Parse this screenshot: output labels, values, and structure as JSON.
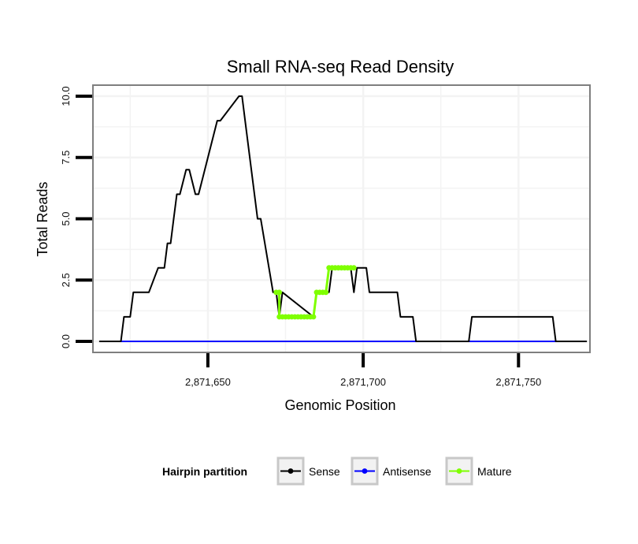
{
  "chart_data": {
    "type": "line",
    "title": "Small RNA-seq Read Density",
    "xlabel": "Genomic Position",
    "ylabel": "Total Reads",
    "xlim": [
      2871613,
      2871773
    ],
    "ylim": [
      -0.45,
      10.45
    ],
    "x_ticks": [
      {
        "value": 2871650,
        "label": "2,871,650"
      },
      {
        "value": 2871700,
        "label": "2,871,700"
      },
      {
        "value": 2871750,
        "label": "2,871,750"
      }
    ],
    "y_ticks": [
      {
        "value": 0,
        "label": "0.0"
      },
      {
        "value": 2.5,
        "label": "2.5"
      },
      {
        "value": 5,
        "label": "5.0"
      },
      {
        "value": 7.5,
        "label": "7.5"
      },
      {
        "value": 10,
        "label": "10.0"
      }
    ],
    "grid": true,
    "legend": {
      "title": "Hairpin partition",
      "position": "bottom",
      "entries": [
        {
          "name": "Sense",
          "color": "#000000"
        },
        {
          "name": "Antisense",
          "color": "#0000ff"
        },
        {
          "name": "Mature",
          "color": "#7fff00"
        }
      ]
    },
    "series": [
      {
        "name": "Sense",
        "color": "#000000",
        "x": [
          2871615,
          2871622,
          2871623,
          2871624,
          2871625,
          2871626,
          2871630,
          2871631,
          2871634,
          2871635,
          2871636,
          2871637,
          2871638,
          2871639,
          2871640,
          2871641,
          2871643,
          2871644,
          2871646,
          2871647,
          2871653,
          2871654,
          2871660,
          2871661,
          2871662,
          2871666,
          2871667,
          2871671,
          2871672,
          2871673,
          2871674,
          2871684,
          2871685,
          2871689,
          2871690,
          2871696,
          2871697,
          2871698,
          2871701,
          2871702,
          2871711,
          2871712,
          2871716,
          2871717,
          2871734,
          2871735,
          2871761,
          2871762,
          2871772
        ],
        "y": [
          0,
          0,
          1,
          1,
          1,
          2,
          2,
          2,
          3,
          3,
          3,
          4,
          4,
          5,
          6,
          6,
          7,
          7,
          6,
          6,
          9,
          9,
          10,
          10,
          9,
          5,
          5,
          2,
          2,
          1,
          2,
          1,
          2,
          2,
          3,
          3,
          2,
          3,
          3,
          2,
          2,
          1,
          1,
          0,
          0,
          1,
          1,
          0,
          0
        ]
      },
      {
        "name": "Antisense",
        "color": "#0000ff",
        "x": [
          2871622,
          2871762
        ],
        "y": [
          0,
          0
        ]
      },
      {
        "name": "Mature",
        "color": "#7fff00",
        "x": [
          2871672,
          2871673,
          2871673,
          2871674,
          2871675,
          2871676,
          2871677,
          2871678,
          2871679,
          2871680,
          2871681,
          2871682,
          2871683,
          2871684,
          2871685,
          2871686,
          2871687,
          2871688,
          2871689,
          2871690,
          2871691,
          2871692,
          2871693,
          2871694,
          2871695,
          2871696,
          2871697
        ],
        "y": [
          2,
          2,
          1,
          1,
          1,
          1,
          1,
          1,
          1,
          1,
          1,
          1,
          1,
          1,
          2,
          2,
          2,
          2,
          3,
          3,
          3,
          3,
          3,
          3,
          3,
          3,
          3
        ]
      }
    ]
  }
}
